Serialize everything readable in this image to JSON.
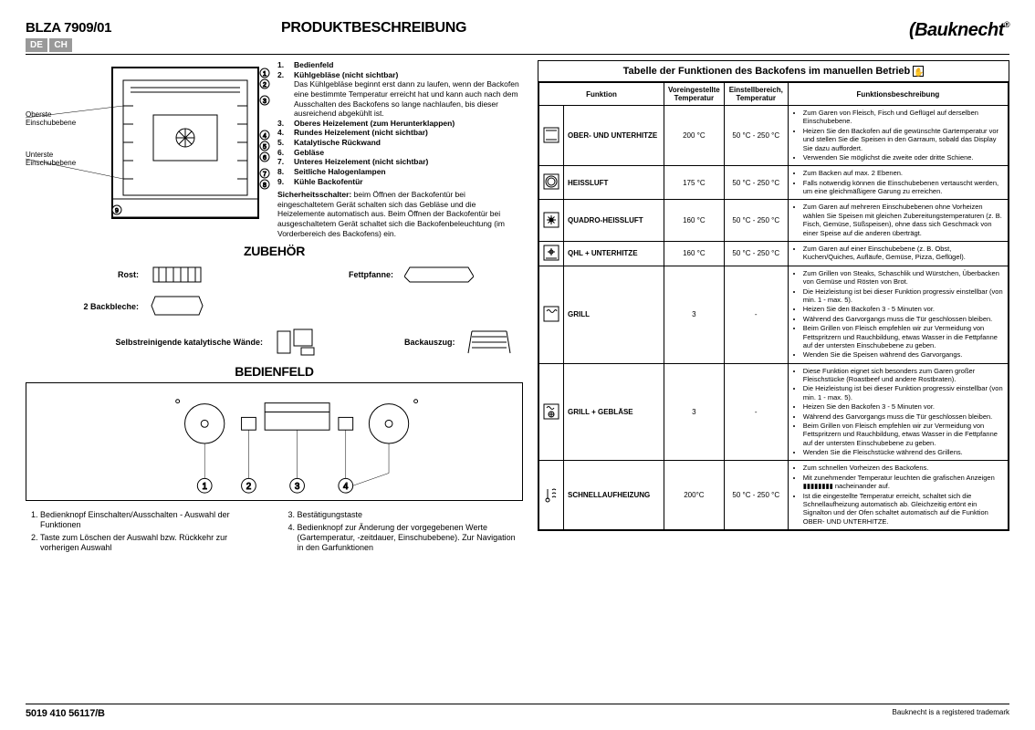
{
  "header": {
    "model": "BLZA 7909/01",
    "flags": [
      "DE",
      "CH"
    ],
    "title": "PRODUKTBESCHREIBUNG",
    "logo": "Bauknecht"
  },
  "left": {
    "side_labels": {
      "top": "Oberste Einschubebene",
      "bottom": "Unterste Einschubebene"
    },
    "legend": [
      {
        "n": "1.",
        "t": "Bedienfeld",
        "d": ""
      },
      {
        "n": "2.",
        "t": "Kühlgebläse (nicht sichtbar)",
        "d": "Das Kühlgebläse beginnt erst dann zu laufen, wenn der Backofen eine bestimmte Temperatur erreicht hat und kann auch nach dem Ausschalten des Backofens so lange nachlaufen, bis dieser ausreichend abgekühlt ist."
      },
      {
        "n": "3.",
        "t": "Oberes Heizelement (zum Herunterklappen)",
        "d": ""
      },
      {
        "n": "4.",
        "t": "Rundes Heizelement (nicht sichtbar)",
        "d": ""
      },
      {
        "n": "5.",
        "t": "Katalytische Rückwand",
        "d": ""
      },
      {
        "n": "6.",
        "t": "Gebläse",
        "d": ""
      },
      {
        "n": "7.",
        "t": "Unteres Heizelement (nicht sichtbar)",
        "d": ""
      },
      {
        "n": "8.",
        "t": "Seitliche Halogenlampen",
        "d": ""
      },
      {
        "n": "9.",
        "t": "Kühle Backofentür",
        "d": ""
      }
    ],
    "safety": "Sicherheitsschalter: beim Öffnen der Backofentür bei eingeschaltetem Gerät schalten sich das Gebläse und die Heizelemente automatisch aus. Beim Öffnen der Backofentür bei ausgeschaltetem Gerät schaltet sich die Backofenbeleuchtung (im Vorderbereich des Backofens) ein.",
    "zubehor_title": "ZUBEHÖR",
    "accessories": [
      {
        "label": "Rost:"
      },
      {
        "label": "Fettpfanne:"
      },
      {
        "label": "2 Backbleche:"
      },
      {
        "label": ""
      },
      {
        "label": "Selbstreinigende katalytische Wände:"
      },
      {
        "label": "Backauszug:"
      }
    ],
    "bedienfeld_title": "BEDIENFELD",
    "panel_notes_left": [
      "Bedienknopf Einschalten/Ausschalten - Auswahl der Funktionen",
      "Taste zum Löschen der Auswahl bzw. Rückkehr zur vorherigen Auswahl"
    ],
    "panel_notes_right": [
      "Bestätigungstaste",
      "Bedienknopf zur Änderung der vorgegebenen Werte (Gartemperatur, -zeitdauer, Einschubebene). Zur Navigation in den Garfunktionen"
    ]
  },
  "right": {
    "table_title": "Tabelle der Funktionen des Backofens im manuellen Betrieb",
    "headers": [
      "Funktion",
      "Voreingestellte Temperatur",
      "Einstellbereich, Temperatur",
      "Funktionsbeschreibung"
    ],
    "rows": [
      {
        "name": "OBER- UND UNTERHITZE",
        "preset": "200 °C",
        "range": "50 °C - 250 °C",
        "bullets": [
          "Zum Garen von Fleisch, Fisch und Geflügel auf derselben Einschubebene.",
          "Heizen Sie den Backofen auf die gewünschte Gartemperatur vor und stellen Sie die Speisen in den Garraum, sobald das Display Sie dazu auffordert.",
          "Verwenden Sie möglichst die zweite oder dritte Schiene."
        ]
      },
      {
        "name": "HEISSLUFT",
        "preset": "175 °C",
        "range": "50 °C - 250 °C",
        "bullets": [
          "Zum Backen auf max. 2 Ebenen.",
          "Falls notwendig können die Einschubebenen vertauscht werden, um eine gleichmäßigere Garung zu erreichen."
        ]
      },
      {
        "name": "QUADRO-HEISSLUFT",
        "preset": "160 °C",
        "range": "50 °C - 250 °C",
        "bullets": [
          "Zum Garen auf mehreren Einschubebenen ohne Vorheizen wählen Sie Speisen mit gleichen Zubereitungstemperaturen (z. B. Fisch, Gemüse, Süßspeisen), ohne dass sich Geschmack von einer Speise auf die anderen überträgt."
        ]
      },
      {
        "name": "QHL + UNTERHITZE",
        "preset": "160 °C",
        "range": "50 °C - 250 °C",
        "bullets": [
          "Zum Garen auf einer Einschubebene (z. B. Obst, Kuchen/Quiches, Aufläufe, Gemüse, Pizza, Geflügel)."
        ]
      },
      {
        "name": "GRILL",
        "preset": "3",
        "range": "-",
        "bullets": [
          "Zum Grillen von Steaks, Schaschlik und Würstchen, Überbacken von Gemüse und Rösten von Brot.",
          "Die Heizleistung ist bei dieser Funktion progressiv einstellbar (von min. 1 - max. 5).",
          "Heizen Sie den Backofen 3 - 5 Minuten vor.",
          "Während des Garvorgangs muss die Tür geschlossen bleiben.",
          "Beim Grillen von Fleisch empfehlen wir zur Vermeidung von Fettspritzern und Rauchbildung, etwas Wasser in die Fettpfanne auf der untersten Einschubebene zu geben.",
          "Wenden Sie die Speisen während des Garvorgangs."
        ]
      },
      {
        "name": "GRILL + GEBLÄSE",
        "preset": "3",
        "range": "-",
        "bullets": [
          "Diese Funktion eignet sich besonders zum Garen großer Fleischstücke (Roastbeef und andere Rostbraten).",
          "Die Heizleistung ist bei dieser Funktion progressiv einstellbar (von min. 1 - max. 5).",
          "Heizen Sie den Backofen 3 - 5 Minuten vor.",
          "Während des Garvorgangs muss die Tür geschlossen bleiben.",
          "Beim Grillen von Fleisch empfehlen wir zur Vermeidung von Fettspritzern und Rauchbildung, etwas Wasser in die Fettpfanne auf der untersten Einschubebene zu geben.",
          "Wenden Sie die Fleischstücke während des Grillens."
        ]
      },
      {
        "name": "SCHNELLAUFHEIZUNG",
        "preset": "200°C",
        "range": "50 °C - 250 °C",
        "bullets": [
          "Zum schnellen Vorheizen des Backofens.",
          "Mit zunehmender Temperatur leuchten die grafischen Anzeigen ▮▮▮▮▮▮▮▮ nacheinander auf.",
          "Ist die eingestellte Temperatur erreicht, schaltet sich die Schnellaufheizung automatisch ab. Gleichzeitig ertönt ein Signalton und der Ofen schaltet automatisch auf die Funktion OBER- UND UNTERHITZE."
        ]
      }
    ]
  },
  "footer": {
    "code": "5019 410 56117/B",
    "trade": "Bauknecht is a registered trademark"
  }
}
